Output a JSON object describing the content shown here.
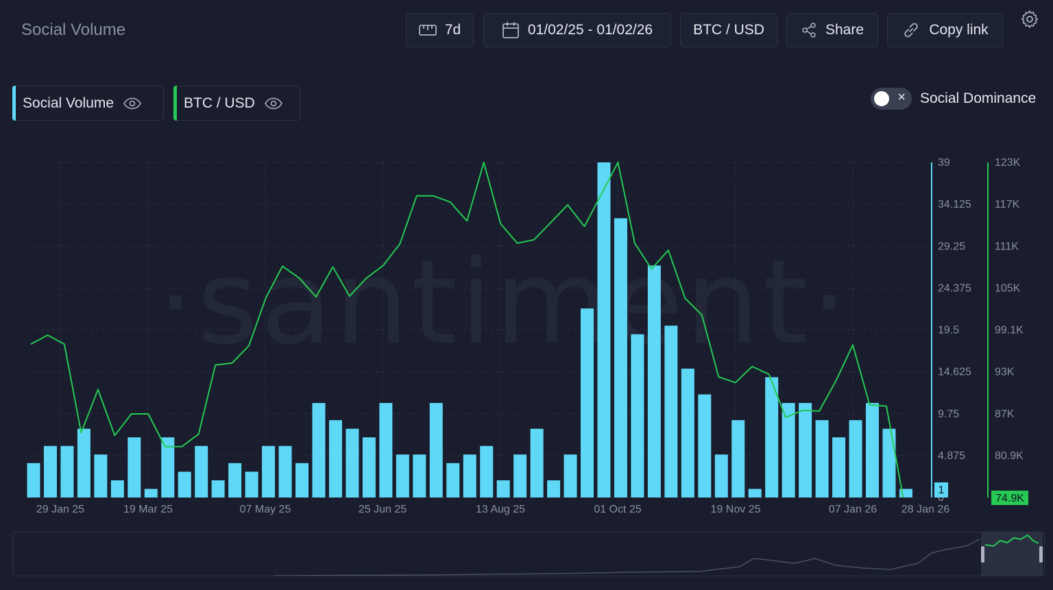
{
  "page": {
    "title": "Social Volume"
  },
  "toolbar": {
    "interval": "7d",
    "date_range": "01/02/25 - 01/02/26",
    "pair": "BTC / USD",
    "share_label": "Share",
    "copy_link_label": "Copy link"
  },
  "legend": [
    {
      "label": "Social Volume",
      "color": "#5fd8f7"
    },
    {
      "label": "BTC / USD",
      "color": "#26c953"
    }
  ],
  "dominance": {
    "label": "Social Dominance",
    "enabled": false
  },
  "watermark": "·santiment·",
  "chart_data": {
    "type": "bar+line",
    "x_labels": [
      "29 Jan 25",
      "19 Mar 25",
      "07 May 25",
      "25 Jun 25",
      "13 Aug 25",
      "01 Oct 25",
      "19 Nov 25",
      "07 Jan 26",
      "28 Jan 26"
    ],
    "left_axis": {
      "ticks": [
        "39",
        "34.125",
        "29.25",
        "24.375",
        "19.5",
        "14.625",
        "9.75",
        "4.875",
        "0"
      ],
      "range": [
        0,
        39
      ],
      "last_value_label": "1",
      "color": "#5fd8f7"
    },
    "right_axis": {
      "ticks": [
        "123K",
        "117K",
        "111K",
        "105K",
        "99.1K",
        "93K",
        "87K",
        "80.9K"
      ],
      "range": [
        74900,
        123000
      ],
      "last_value_label": "74.9K",
      "color": "#26c953"
    },
    "series": [
      {
        "name": "Social Volume",
        "type": "bar",
        "values": [
          4,
          6,
          6,
          8,
          5,
          2,
          7,
          1,
          7,
          3,
          6,
          2,
          4,
          3,
          6,
          6,
          4,
          11,
          9,
          8,
          7,
          11,
          5,
          5,
          11,
          4,
          5,
          6,
          2,
          5,
          8,
          2,
          5,
          22,
          39,
          32.5,
          19,
          27,
          20,
          15,
          12,
          5,
          9,
          1,
          14,
          11,
          11,
          9,
          7,
          9,
          11,
          8,
          1
        ]
      },
      {
        "name": "BTC / USD",
        "type": "line",
        "values": [
          96900,
          98200,
          96900,
          84200,
          90400,
          83800,
          86900,
          86900,
          82200,
          82200,
          84000,
          93900,
          94200,
          96700,
          103500,
          108100,
          106400,
          103700,
          108000,
          103800,
          106400,
          108200,
          111300,
          118200,
          118200,
          117300,
          114600,
          123000,
          114200,
          111400,
          111900,
          114400,
          116900,
          113800,
          118400,
          123000,
          111400,
          107700,
          110400,
          103500,
          101100,
          92200,
          91400,
          93700,
          92600,
          86400,
          87400,
          87300,
          91700,
          96800,
          88200,
          88000,
          74900
        ]
      }
    ],
    "grid": true,
    "legend_position": "top-left"
  }
}
